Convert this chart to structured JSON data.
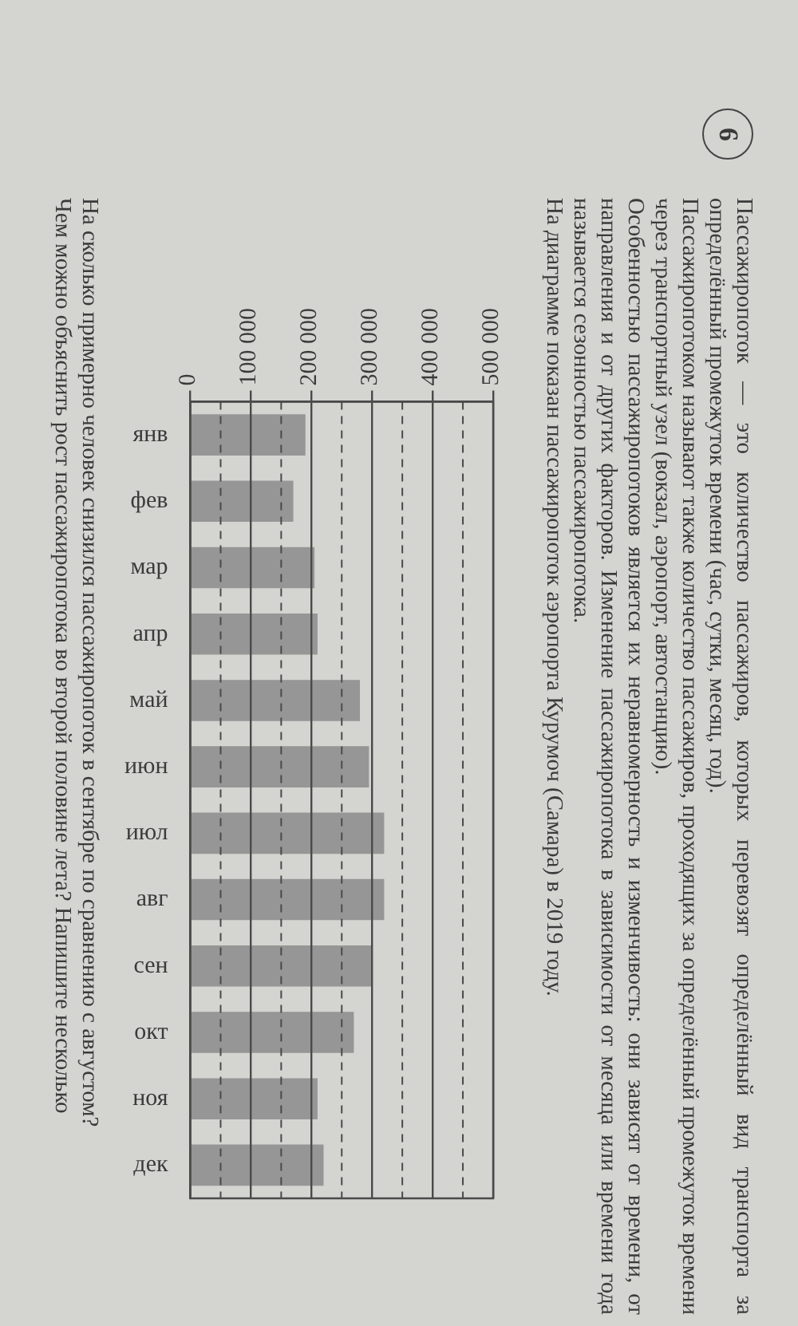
{
  "chart_data": {
    "type": "bar",
    "orientation": "horizontal",
    "title": "На диаграмме показан пассажиропоток аэропорта Курумоч (Самара) в 2019 году.",
    "annotations": [
      "6",
      "Пассажиропоток — это количество пассажиров, которых перевозят определённый вид транспорта за определённый промежуток времени (час, сутки, месяц, год).",
      "Пассажиропотоком называют также количество пассажиров, проходящих за определённый промежуток времени через транспортный узел (вокзал, аэропорт, автостанцию).",
      "Особенностью пассажиропотоков является их неравномерность и изменчивость: они зависят от времени, от направления и от других факторов. Изменение пассажиропотока в зависимости от месяца или времени года называется сезонностью пассажиропотока.",
      "На сколько примерно человек снизился пассажиропоток в сентябре по сравнению с августом?",
      "Чем можно объяснить рост пассажиропотока во второй половине лета? Напишите несколько"
    ],
    "categories": [
      "янв",
      "фев",
      "мар",
      "апр",
      "май",
      "июн",
      "июл",
      "авг",
      "сен",
      "окт",
      "ноя",
      "дек"
    ],
    "values": [
      190000,
      170000,
      205000,
      210000,
      280000,
      295000,
      320000,
      320000,
      300000,
      270000,
      210000,
      220000
    ],
    "color": "#969696",
    "xlim": [
      0,
      500000
    ],
    "xticks": [
      0,
      {
        "value": 50000,
        "label": null
      },
      {
        "value": 100000,
        "label": "100 000"
      },
      {
        "value": 150000,
        "label": null
      },
      {
        "value": 200000,
        "label": "200 000"
      },
      {
        "value": 250000,
        "label": null
      },
      {
        "value": 300000,
        "label": "300 000"
      },
      {
        "value": 350000,
        "label": null
      },
      {
        "value": 400000,
        "label": "400 000"
      },
      {
        "value": 450000,
        "label": null
      },
      {
        "value": 500000,
        "label": "500 000"
      }
    ],
    "grid": true
  }
}
